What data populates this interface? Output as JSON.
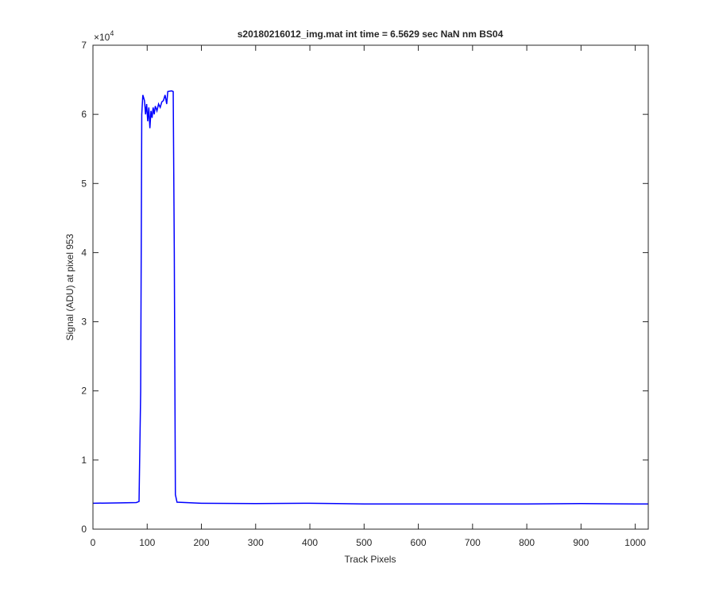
{
  "chart_data": {
    "type": "line",
    "title": "s20180216012_img.mat int time = 6.5629 sec  NaN nm BS04",
    "x_label": "Track Pixels",
    "y_label": "Signal (ADU) at pixel 953",
    "y_multiplier": {
      "base": "×10",
      "exponent": "4"
    },
    "color": "#0000ff",
    "x": [
      0,
      50,
      80,
      85,
      88,
      90,
      92,
      95,
      97,
      99,
      101,
      103,
      105,
      107,
      109,
      111,
      113,
      115,
      118,
      121,
      124,
      127,
      130,
      133,
      136,
      138,
      145,
      148,
      150,
      152,
      155,
      200,
      300,
      400,
      450,
      500,
      600,
      700,
      800,
      900,
      1000,
      1024
    ],
    "values": [
      3750,
      3800,
      3850,
      4000,
      20000,
      60000,
      62800,
      62000,
      60000,
      61500,
      59000,
      61000,
      58000,
      60500,
      59500,
      61000,
      60000,
      61200,
      60500,
      61500,
      61000,
      61800,
      62000,
      62800,
      61500,
      63300,
      63400,
      63300,
      40000,
      5000,
      3900,
      3750,
      3700,
      3750,
      3700,
      3650,
      3650,
      3650,
      3650,
      3700,
      3650,
      3650
    ],
    "xlim": [
      0,
      1024
    ],
    "xticks": [
      0,
      100,
      200,
      300,
      400,
      500,
      600,
      700,
      800,
      900,
      1000
    ],
    "ylim": [
      0,
      70000
    ],
    "yticks": [
      {
        "value": 0,
        "label": "0"
      },
      {
        "value": 10000,
        "label": "1"
      },
      {
        "value": 20000,
        "label": "2"
      },
      {
        "value": 30000,
        "label": "3"
      },
      {
        "value": 40000,
        "label": "4"
      },
      {
        "value": 50000,
        "label": "5"
      },
      {
        "value": 60000,
        "label": "6"
      },
      {
        "value": 70000,
        "label": "7"
      }
    ]
  }
}
